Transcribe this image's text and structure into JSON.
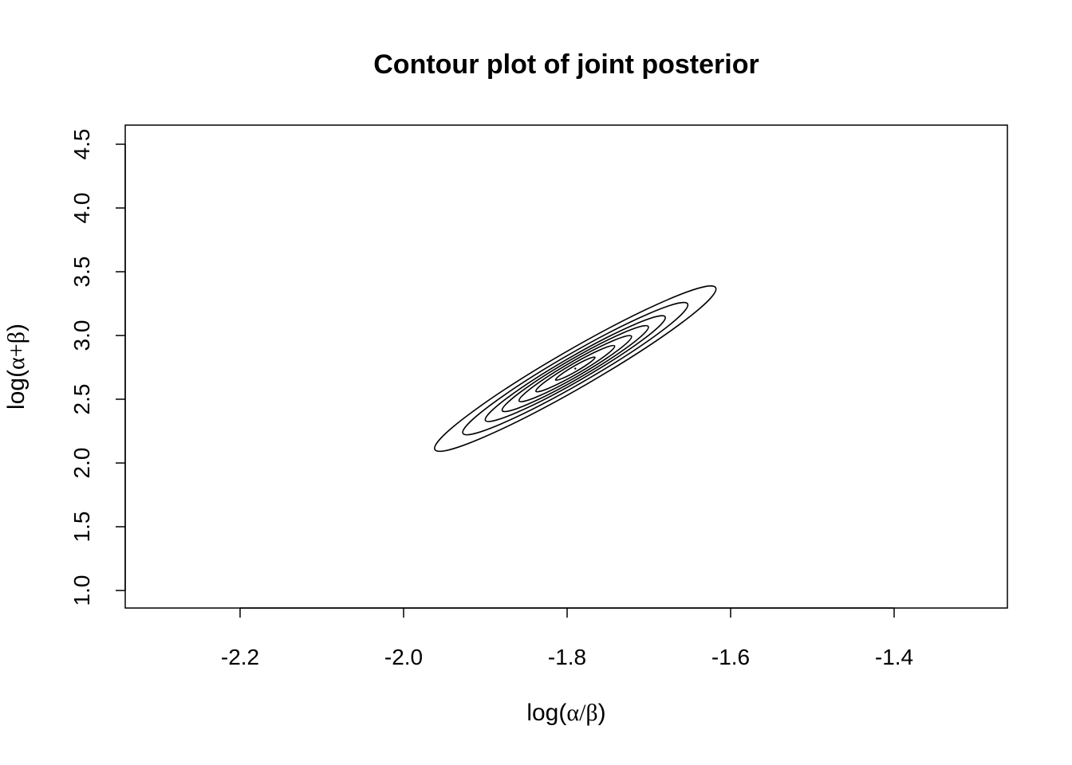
{
  "chart_data": {
    "type": "contour",
    "title": "Contour plot of joint posterior",
    "xlabel": {
      "prefix": "log(",
      "a": "α",
      "op": "/",
      "b": "β",
      "suffix": ")"
    },
    "ylabel": {
      "prefix": "log(",
      "a": "α",
      "op": "+",
      "b": "β",
      "suffix": ")"
    },
    "xlim": [
      -2.3,
      -1.3
    ],
    "ylim": [
      1.0,
      4.5
    ],
    "x_ticks": [
      -2.2,
      -2.0,
      -1.8,
      -1.6,
      -1.4
    ],
    "x_tick_labels": [
      "-2.2",
      "-2.0",
      "-1.8",
      "-1.6",
      "-1.4"
    ],
    "y_ticks": [
      1.0,
      1.5,
      2.0,
      2.5,
      3.0,
      3.5,
      4.0,
      4.5
    ],
    "y_tick_labels": [
      "1.0",
      "1.5",
      "2.0",
      "2.5",
      "3.0",
      "3.5",
      "4.0",
      "4.5"
    ],
    "grid": false,
    "legend": "none",
    "contours": {
      "center": [
        -1.79,
        2.74
      ],
      "orientation_deg": 30,
      "levels": [
        {
          "name": "level-1",
          "scale": 1.0
        },
        {
          "name": "level-2",
          "scale": 0.8
        },
        {
          "name": "level-3",
          "scale": 0.64
        },
        {
          "name": "level-4",
          "scale": 0.52
        },
        {
          "name": "level-5",
          "scale": 0.4
        },
        {
          "name": "level-6",
          "scale": 0.28
        },
        {
          "name": "level-7",
          "scale": 0.14
        }
      ],
      "outer_extent": {
        "x": [
          -1.95,
          -1.62
        ],
        "y": [
          2.05,
          3.55
        ]
      }
    },
    "colors": {
      "line": "#000000",
      "background": "#ffffff"
    }
  }
}
